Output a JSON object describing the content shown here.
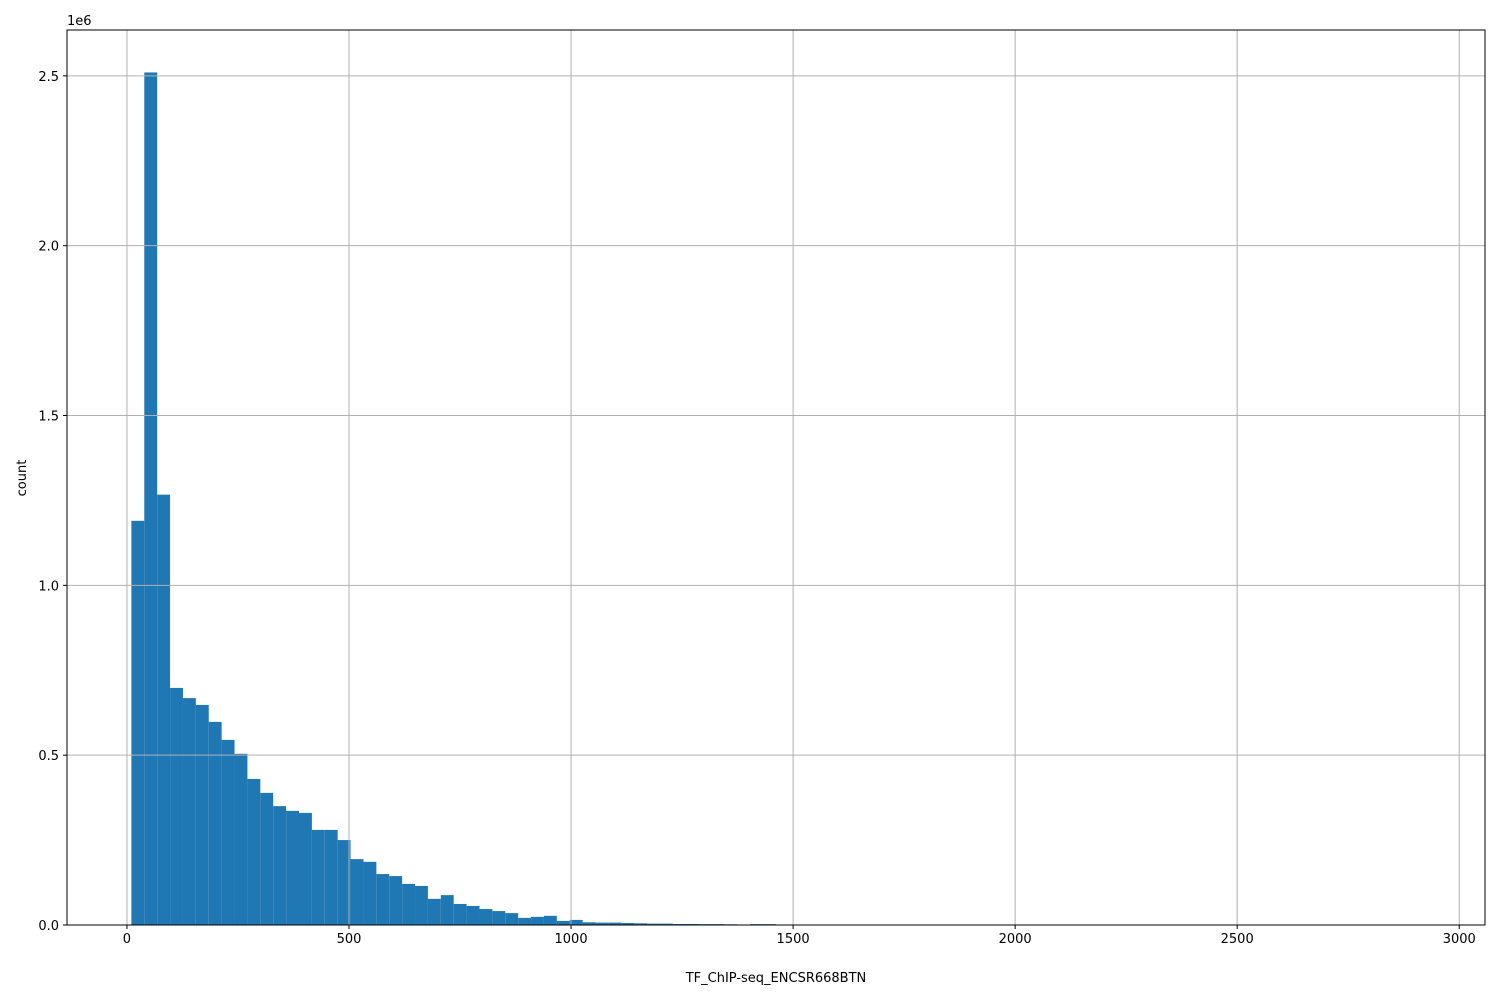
{
  "chart_data": {
    "type": "bar",
    "title": "",
    "xlabel": "TF_ChIP-seq_ENCSR668BTN",
    "ylabel": "count",
    "y_offset_label": "1e6",
    "xlim": [
      -135,
      3058
    ],
    "ylim": [
      0,
      2635000
    ],
    "grid": true,
    "bar_color": "#1f77b4",
    "bin_start": 10,
    "bin_width": 29.03,
    "x_ticks": [
      0,
      500,
      1000,
      1500,
      2000,
      2500,
      3000
    ],
    "x_tick_labels": [
      "0",
      "500",
      "1000",
      "1500",
      "2000",
      "2500",
      "3000"
    ],
    "y_ticks": [
      0,
      500000,
      1000000,
      1500000,
      2000000,
      2500000
    ],
    "y_tick_labels": [
      "0.0",
      "0.5",
      "1.0",
      "1.5",
      "2.0",
      "2.5"
    ],
    "values": [
      1190000,
      2510000,
      1267000,
      698000,
      668000,
      648000,
      598000,
      545000,
      504000,
      430000,
      389000,
      350000,
      336000,
      330000,
      280000,
      280000,
      250000,
      194000,
      186000,
      150000,
      144000,
      121000,
      115000,
      77000,
      88000,
      62000,
      56000,
      47000,
      41000,
      35000,
      21000,
      24000,
      27000,
      12000,
      15000,
      8000,
      7000,
      7000,
      6000,
      5000,
      4000,
      4000,
      3000,
      3000,
      2500,
      2500,
      2000,
      1000,
      2500,
      2500,
      500,
      400,
      300,
      200,
      150,
      100,
      100,
      80,
      60,
      50,
      40,
      30,
      20,
      20,
      10,
      10,
      10,
      5,
      5,
      5,
      0,
      0,
      0,
      0,
      0,
      0,
      0,
      0,
      0,
      0,
      0,
      0,
      0,
      0,
      0,
      0,
      0,
      0,
      0,
      0,
      0,
      0,
      0,
      0,
      0,
      0,
      0,
      0,
      0,
      5
    ]
  }
}
